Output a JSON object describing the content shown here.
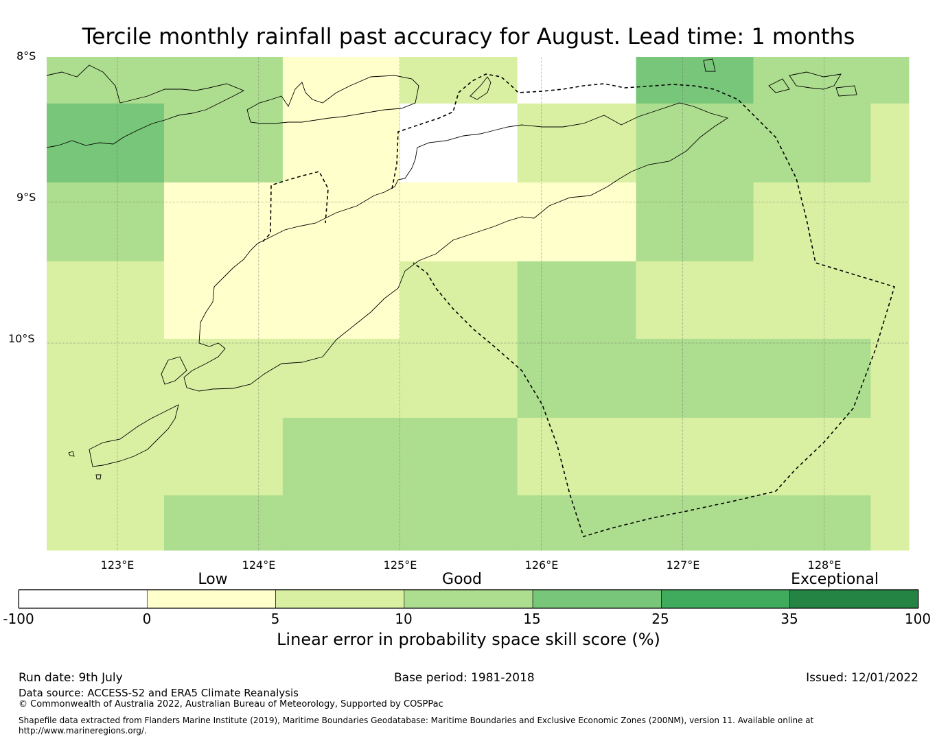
{
  "title": "Tercile monthly rainfall past accuracy for August. Lead time: 1 months",
  "map": {
    "lat_labels": [
      "8°S",
      "9°S",
      "10°S"
    ],
    "lon_labels": [
      "123°E",
      "124°E",
      "125°E",
      "126°E",
      "127°E",
      "128°E"
    ],
    "extent": {
      "lon_min": 122.5,
      "lon_max": 128.6,
      "lat_max": -7.97,
      "lat_min": -11.47
    },
    "grid_lons": [
      122.5,
      123.33,
      124.17,
      125.0,
      125.83,
      126.67,
      127.5,
      128.33,
      128.6
    ],
    "grid_lats": [
      -7.97,
      -8.3,
      -8.86,
      -9.42,
      -9.97,
      -10.53,
      -11.08,
      -11.47
    ],
    "cell_values": [
      [
        12,
        12,
        3,
        8,
        null,
        20,
        12,
        12
      ],
      [
        18,
        12,
        3,
        null,
        8,
        12,
        12,
        8
      ],
      [
        12,
        3,
        3,
        3,
        3,
        12,
        8,
        8
      ],
      [
        8,
        3,
        3,
        8,
        12,
        8,
        8,
        8
      ],
      [
        8,
        8,
        8,
        8,
        12,
        12,
        12,
        8
      ],
      [
        8,
        8,
        12,
        12,
        8,
        8,
        8,
        8
      ],
      [
        8,
        12,
        12,
        12,
        12,
        12,
        12,
        8
      ]
    ]
  },
  "colorbar": {
    "category_labels": [
      "Low",
      "Good",
      "Exceptional"
    ],
    "ticks": [
      "-100",
      "0",
      "5",
      "10",
      "15",
      "25",
      "35",
      "100"
    ],
    "colors": [
      "#ffffff",
      "#ffffcc",
      "#d9f0a3",
      "#addd8e",
      "#78c679",
      "#41ab5d",
      "#238443"
    ],
    "title": "Linear error in probability space skill score (%)"
  },
  "footer": {
    "run_date": "Run date: 9th July",
    "base_period": "Base period: 1981-2018",
    "issued": "Issued: 12/01/2022",
    "data_source": "Data source: ACCESS-S2 and ERA5 Climate Reanalysis",
    "copyright": "© Commonwealth of Australia 2022, Australian Bureau of Meteorology, Supported by COSPPac",
    "shapefile": "Shapefile data extracted from Flanders Marine Institute (2019), Maritime Boundaries Geodatabase: Maritime Boundaries and Exclusive Economic Zones (200NM), version 11. Available online at http://www.marineregions.org/."
  }
}
